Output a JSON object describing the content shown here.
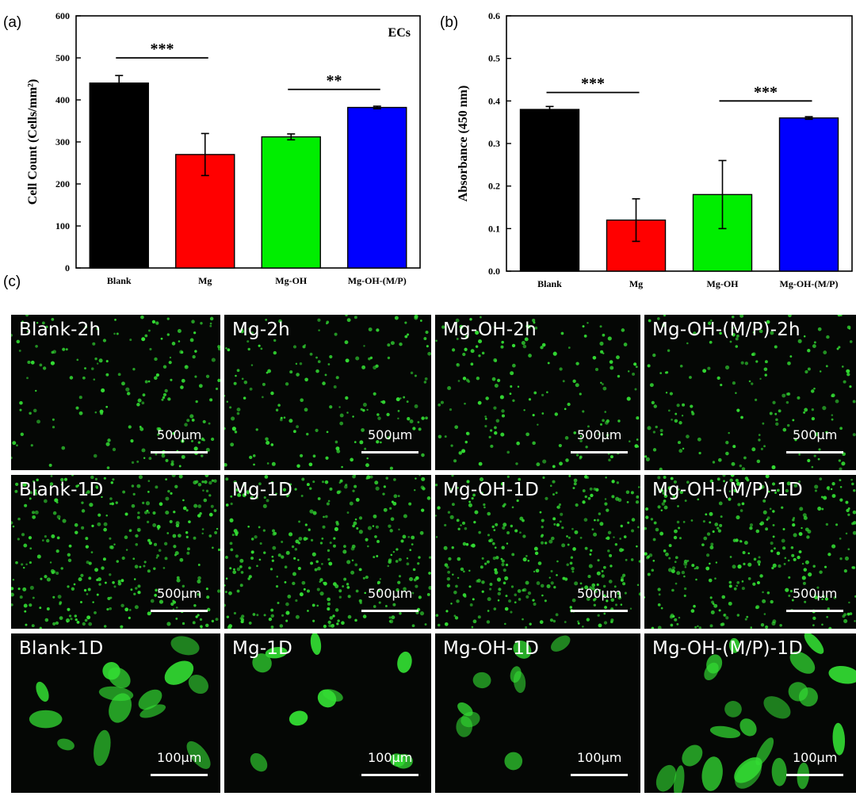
{
  "chart_data": [
    {
      "panel": "(a)",
      "type": "bar",
      "ylabel": "Cell Count (Cells/mm²)",
      "xlabel": "",
      "title": "",
      "annotation": "ECs",
      "categories": [
        "Blank",
        "Mg",
        "Mg-OH",
        "Mg-OH-(M/P)"
      ],
      "values": [
        440,
        270,
        312,
        382
      ],
      "errors": [
        18,
        50,
        7,
        3
      ],
      "colors": [
        "#000000",
        "#ff0000",
        "#00ee00",
        "#0000ff"
      ],
      "ylim": [
        0,
        600
      ],
      "yticks": [
        "0",
        "100",
        "200",
        "300",
        "400",
        "500",
        "600"
      ],
      "significance": [
        {
          "from": 0,
          "to": 1,
          "label": "***",
          "y": 500
        },
        {
          "from": 2,
          "to": 3,
          "label": "**",
          "y": 425
        }
      ],
      "grid": false
    },
    {
      "panel": "(b)",
      "type": "bar",
      "ylabel": "Absorbance (450 nm)",
      "xlabel": "",
      "title": "",
      "categories": [
        "Blank",
        "Mg",
        "Mg-OH",
        "Mg-OH-(M/P)"
      ],
      "values": [
        0.38,
        0.12,
        0.18,
        0.36
      ],
      "errors": [
        0.007,
        0.05,
        0.08,
        0.003
      ],
      "colors": [
        "#000000",
        "#ff0000",
        "#00ee00",
        "#0000ff"
      ],
      "ylim": [
        0,
        0.6
      ],
      "yticks": [
        "0.0",
        "0.1",
        "0.2",
        "0.3",
        "0.4",
        "0.5",
        "0.6"
      ],
      "significance": [
        {
          "from": 0,
          "to": 1,
          "label": "***",
          "y": 0.42
        },
        {
          "from": 2,
          "to": 3,
          "label": "***",
          "y": 0.4
        }
      ],
      "grid": false
    }
  ],
  "panel_c": {
    "label": "(c)",
    "rows": [
      {
        "scale": "500μm",
        "tiles": [
          "Blank-2h",
          "Mg-2h",
          "Mg-OH-2h",
          "Mg-OH-(M/P)-2h"
        ]
      },
      {
        "scale": "500μm",
        "tiles": [
          "Blank-1D",
          "Mg-1D",
          "Mg-OH-1D",
          "Mg-OH-(M/P)-1D"
        ]
      },
      {
        "scale": "100μm",
        "tiles": [
          "Blank-1D",
          "Mg-1D",
          "Mg-OH-1D",
          "Mg-OH-(M/P)-1D"
        ]
      }
    ]
  },
  "colors": {
    "cell_fluorescence": "#33dd33",
    "tile_background": "#050705"
  }
}
